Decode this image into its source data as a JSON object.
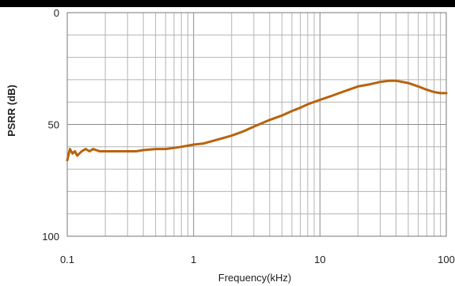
{
  "chart_data": {
    "type": "line",
    "title": "",
    "xlabel": "Frequency(kHz)",
    "ylabel": "PSRR (dB)",
    "xscale": "log",
    "xlim": [
      0.1,
      100
    ],
    "ylim": [
      0,
      100
    ],
    "y_inverted": true,
    "grid": true,
    "x_ticks": [
      {
        "value": 0.1,
        "label": "0.1"
      },
      {
        "value": 1,
        "label": "1"
      },
      {
        "value": 10,
        "label": "10"
      },
      {
        "value": 100,
        "label": "100"
      }
    ],
    "y_ticks": [
      {
        "value": 0,
        "label": "0"
      },
      {
        "value": 50,
        "label": "50"
      },
      {
        "value": 100,
        "label": "100"
      }
    ],
    "series": [
      {
        "color": "#b8620c",
        "x": [
          0.1,
          0.105,
          0.11,
          0.115,
          0.12,
          0.13,
          0.14,
          0.15,
          0.16,
          0.18,
          0.2,
          0.22,
          0.25,
          0.28,
          0.3,
          0.35,
          0.4,
          0.5,
          0.6,
          0.7,
          0.8,
          0.9,
          1,
          1.2,
          1.5,
          2,
          2.5,
          3,
          4,
          5,
          6,
          7,
          8,
          10,
          12,
          15,
          20,
          25,
          30,
          35,
          40,
          45,
          50,
          60,
          70,
          80,
          90,
          100
        ],
        "y": [
          66,
          61,
          63,
          62,
          64,
          62,
          61,
          62,
          61,
          62,
          62,
          62,
          62,
          62,
          62,
          62,
          61.5,
          61,
          61,
          60.5,
          60,
          59.5,
          59,
          58.5,
          57,
          55,
          53,
          51,
          48,
          46,
          44,
          42.5,
          41,
          39,
          37.5,
          35.5,
          33,
          32,
          31,
          30.5,
          30.5,
          31,
          31.5,
          33,
          34.5,
          35.5,
          36,
          36
        ]
      }
    ]
  }
}
